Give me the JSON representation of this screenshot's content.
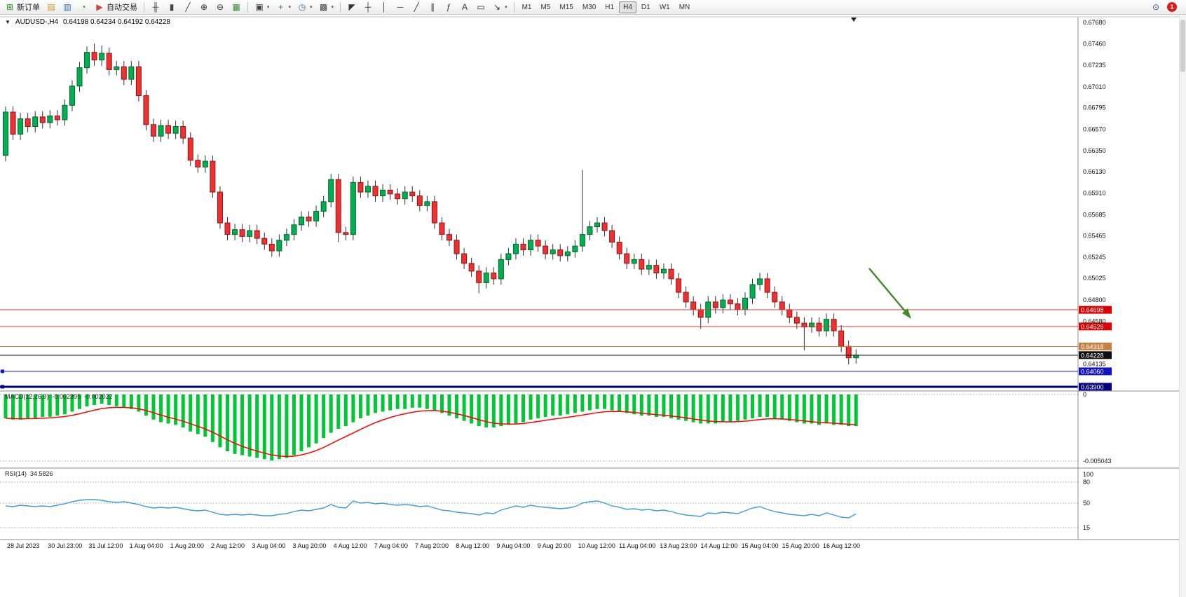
{
  "toolbar": {
    "active_timeframe": "H4",
    "items": [
      {
        "type": "button",
        "name": "new-order",
        "glyph": "⊞",
        "color": "#1f8f1f",
        "label": "新订单"
      },
      {
        "type": "button",
        "name": "market-watch",
        "glyph": "▤",
        "color": "#c89a28"
      },
      {
        "type": "button",
        "name": "data-window",
        "glyph": "▥",
        "color": "#3a6ea5"
      },
      {
        "type": "button",
        "name": "navigator",
        "glyph": "◔",
        "color": "#2e8b2e"
      },
      {
        "type": "button",
        "name": "auto-trading",
        "glyph": "▶",
        "color": "#cc4433",
        "label": "自动交易"
      },
      {
        "type": "sep"
      },
      {
        "type": "button",
        "name": "bar-chart",
        "glyph": "╫",
        "color": "#444444"
      },
      {
        "type": "button",
        "name": "candlestick-chart",
        "glyph": "▮",
        "color": "#444444"
      },
      {
        "type": "button",
        "name": "line-chart",
        "glyph": "╱",
        "color": "#444444"
      },
      {
        "type": "button",
        "name": "zoom-in",
        "glyph": "⊕",
        "color": "#333333"
      },
      {
        "type": "button",
        "name": "zoom-out",
        "glyph": "⊖",
        "color": "#333333"
      },
      {
        "type": "button",
        "name": "tile-windows",
        "glyph": "▦",
        "color": "#2e8b2e"
      },
      {
        "type": "sep"
      },
      {
        "type": "button",
        "name": "new-chart",
        "glyph": "▣",
        "color": "#444444",
        "dropdown": true
      },
      {
        "type": "button",
        "name": "indicators-list",
        "glyph": "+",
        "color": "#1f8f1f",
        "dropdown": true
      },
      {
        "type": "button",
        "name": "periods",
        "glyph": "◷",
        "color": "#3a6ea5",
        "dropdown": true
      },
      {
        "type": "button",
        "name": "templates",
        "glyph": "▩",
        "color": "#444444",
        "dropdown": true
      },
      {
        "type": "sep"
      },
      {
        "type": "button",
        "name": "cursor",
        "glyph": "◤",
        "color": "#333333"
      },
      {
        "type": "button",
        "name": "crosshair",
        "glyph": "┼",
        "color": "#333333"
      },
      {
        "type": "button",
        "name": "vertical-line",
        "glyph": "│",
        "color": "#333333"
      },
      {
        "type": "button",
        "name": "horizontal-line",
        "glyph": "─",
        "color": "#333333"
      },
      {
        "type": "button",
        "name": "trendline",
        "glyph": "╱",
        "color": "#333333"
      },
      {
        "type": "button",
        "name": "equidistant-channel",
        "glyph": "∥",
        "color": "#333333"
      },
      {
        "type": "button",
        "name": "fibonacci",
        "glyph": "ƒ",
        "color": "#333333"
      },
      {
        "type": "button",
        "name": "text",
        "glyph": "A",
        "color": "#333333"
      },
      {
        "type": "button",
        "name": "text-label",
        "glyph": "▭",
        "color": "#333333"
      },
      {
        "type": "button",
        "name": "arrows",
        "glyph": "↘",
        "color": "#333333",
        "dropdown": true
      },
      {
        "type": "sep"
      },
      {
        "type": "tf",
        "label": "M1"
      },
      {
        "type": "tf",
        "label": "M5"
      },
      {
        "type": "tf",
        "label": "M15"
      },
      {
        "type": "tf",
        "label": "M30"
      },
      {
        "type": "tf",
        "label": "H1"
      },
      {
        "type": "tf",
        "label": "H4"
      },
      {
        "type": "tf",
        "label": "D1"
      },
      {
        "type": "tf",
        "label": "W1"
      },
      {
        "type": "tf",
        "label": "MN"
      },
      {
        "type": "spacer"
      },
      {
        "type": "button",
        "name": "search",
        "glyph": "⊙",
        "color": "#2255aa"
      },
      {
        "type": "badge",
        "name": "notifications",
        "label": "1"
      }
    ]
  },
  "chart_header": {
    "collapse_icon": "▼",
    "symbol_period": "AUDUSD-,H4",
    "ohlc": "0.64198 0.64234 0.64192 0.64228"
  },
  "price_axis_labels": [
    "0.67680",
    "0.67460",
    "0.67235",
    "0.67010",
    "0.66795",
    "0.66570",
    "0.66350",
    "0.66130",
    "0.65910",
    "0.65685",
    "0.65465",
    "0.65245",
    "0.65025",
    "0.64800",
    "0.64580",
    "0.64135"
  ],
  "hlines": [
    {
      "price": 0.64698,
      "label": "0.64698",
      "color": "#f03030",
      "badge": "#e00000",
      "width": 1
    },
    {
      "price": 0.64526,
      "label": "0.64526",
      "color": "#f03030",
      "badge": "#e00000",
      "width": 1
    },
    {
      "price": 0.64318,
      "label": "0.64318",
      "color": "#c8813f",
      "badge": "#c8813f",
      "width": 1
    },
    {
      "price": 0.64228,
      "label": "0.64228",
      "color": "#101010",
      "badge": "#101010",
      "width": 1
    },
    {
      "price": 0.6406,
      "label": "0.64060",
      "color": "#1515e0",
      "badge": "#1111cc",
      "width": 1,
      "handles": true
    },
    {
      "price": 0.639,
      "label": "0.63900",
      "color": "#000080",
      "badge": "#000080",
      "width": 3,
      "handles": true
    }
  ],
  "chart_data": {
    "type": "candlestick",
    "symbol": "AUDUSD",
    "period": "H4",
    "ylim": [
      0.639,
      0.6768
    ],
    "open_first": 0.663,
    "default_wick": 0.0006,
    "closes": [
      0.6675,
      0.6652,
      0.6668,
      0.666,
      0.667,
      0.6664,
      0.6671,
      0.6667,
      0.6682,
      0.6702,
      0.6721,
      0.6737,
      0.6729,
      0.6736,
      0.6719,
      0.6722,
      0.6709,
      0.6722,
      0.6692,
      0.6662,
      0.665,
      0.6661,
      0.6653,
      0.666,
      0.6648,
      0.6625,
      0.6618,
      0.6624,
      0.6592,
      0.656,
      0.6548,
      0.6553,
      0.6546,
      0.6552,
      0.6544,
      0.6538,
      0.6531,
      0.6542,
      0.6548,
      0.6558,
      0.6566,
      0.6562,
      0.6572,
      0.6582,
      0.6605,
      0.655,
      0.6548,
      0.6602,
      0.6592,
      0.6598,
      0.6588,
      0.6594,
      0.659,
      0.6585,
      0.6592,
      0.6588,
      0.6578,
      0.6582,
      0.656,
      0.6548,
      0.6542,
      0.6528,
      0.6518,
      0.651,
      0.6498,
      0.6508,
      0.6502,
      0.6522,
      0.6528,
      0.6538,
      0.6532,
      0.6542,
      0.6536,
      0.6528,
      0.6532,
      0.6526,
      0.653,
      0.6536,
      0.6548,
      0.6556,
      0.656,
      0.6552,
      0.654,
      0.6528,
      0.6518,
      0.6522,
      0.6512,
      0.6516,
      0.6508,
      0.6512,
      0.6502,
      0.6488,
      0.6478,
      0.647,
      0.6462,
      0.6478,
      0.6472,
      0.648,
      0.6476,
      0.647,
      0.6482,
      0.6496,
      0.6502,
      0.6488,
      0.6478,
      0.647,
      0.6462,
      0.6456,
      0.6452,
      0.6456,
      0.6448,
      0.646,
      0.6448,
      0.6432,
      0.642,
      0.64228
    ],
    "wick_overrides": {
      "12": {
        "h": 0.6746
      },
      "13": {
        "h": 0.6744
      },
      "45": {
        "l": 0.654
      },
      "64": {
        "l": 0.6487
      },
      "78": {
        "h": 0.6615
      },
      "94": {
        "l": 0.645
      },
      "108": {
        "l": 0.6428
      },
      "114": {
        "l": 0.6413
      }
    },
    "x_axis_labels": [
      "28 Jul 2023",
      "30 Jul 23:00",
      "31 Jul 12:00",
      "1 Aug 04:00",
      "1 Aug 20:00",
      "2 Aug 12:00",
      "3 Aug 04:00",
      "3 Aug 20:00",
      "4 Aug 12:00",
      "7 Aug 04:00",
      "7 Aug 20:00",
      "8 Aug 12:00",
      "9 Aug 04:00",
      "9 Aug 20:00",
      "10 Aug 12:00",
      "11 Aug 04:00",
      "13 Aug 23:00",
      "14 Aug 12:00",
      "15 Aug 04:00",
      "15 Aug 20:00",
      "16 Aug 12:00"
    ]
  },
  "indicators": {
    "macd": {
      "label": "MACD(12,26,9)",
      "value_main": "-0.002395",
      "value_signal": "-0.002022",
      "axis_max": "0",
      "axis_min": "-0.005043",
      "values": [
        -0.0018,
        -0.0019,
        -0.0019,
        -0.0018,
        -0.0018,
        -0.0017,
        -0.0017,
        -0.0016,
        -0.0015,
        -0.0013,
        -0.0011,
        -0.0009,
        -0.0008,
        -0.0007,
        -0.0008,
        -0.0009,
        -0.001,
        -0.0011,
        -0.0013,
        -0.0016,
        -0.0019,
        -0.0021,
        -0.0022,
        -0.0023,
        -0.0025,
        -0.0028,
        -0.003,
        -0.0032,
        -0.0036,
        -0.004,
        -0.0043,
        -0.0045,
        -0.0046,
        -0.0047,
        -0.0048,
        -0.0049,
        -0.005,
        -0.0049,
        -0.0048,
        -0.0046,
        -0.0043,
        -0.004,
        -0.0037,
        -0.0033,
        -0.0029,
        -0.0026,
        -0.0024,
        -0.0021,
        -0.0018,
        -0.0016,
        -0.0014,
        -0.0013,
        -0.0012,
        -0.0011,
        -0.0011,
        -0.001,
        -0.001,
        -0.0011,
        -0.0012,
        -0.0014,
        -0.0016,
        -0.0018,
        -0.002,
        -0.0022,
        -0.0024,
        -0.0025,
        -0.0025,
        -0.0024,
        -0.0023,
        -0.0022,
        -0.0021,
        -0.0019,
        -0.0018,
        -0.0017,
        -0.0016,
        -0.0016,
        -0.0015,
        -0.0014,
        -0.0013,
        -0.0012,
        -0.0011,
        -0.0011,
        -0.0012,
        -0.0013,
        -0.0014,
        -0.0015,
        -0.0016,
        -0.0016,
        -0.0017,
        -0.0017,
        -0.0018,
        -0.0019,
        -0.002,
        -0.0021,
        -0.0022,
        -0.0022,
        -0.0022,
        -0.0021,
        -0.0021,
        -0.002,
        -0.0019,
        -0.0018,
        -0.0017,
        -0.0017,
        -0.0018,
        -0.0019,
        -0.002,
        -0.0021,
        -0.0022,
        -0.0022,
        -0.0023,
        -0.0022,
        -0.0023,
        -0.0023,
        -0.0024,
        -0.0024
      ]
    },
    "rsi": {
      "label": "RSI(14)",
      "value": "34.5826",
      "axis_labels": [
        "100",
        "80",
        "50",
        "15"
      ],
      "levels": [
        80,
        50,
        15
      ],
      "values": [
        46,
        45,
        47,
        46,
        45,
        46,
        45,
        47,
        49,
        52,
        54,
        55,
        55,
        54,
        52,
        51,
        52,
        50,
        48,
        45,
        43,
        44,
        43,
        44,
        42,
        40,
        39,
        40,
        37,
        34,
        33,
        34,
        33,
        34,
        33,
        32,
        32,
        34,
        35,
        38,
        40,
        39,
        41,
        43,
        48,
        44,
        43,
        53,
        50,
        51,
        49,
        50,
        48,
        47,
        48,
        47,
        45,
        46,
        43,
        40,
        39,
        37,
        36,
        35,
        33,
        36,
        35,
        40,
        43,
        46,
        44,
        47,
        45,
        44,
        43,
        42,
        43,
        45,
        50,
        52,
        53,
        50,
        46,
        44,
        41,
        42,
        40,
        41,
        39,
        40,
        38,
        35,
        33,
        32,
        31,
        36,
        35,
        37,
        36,
        35,
        39,
        43,
        45,
        41,
        38,
        36,
        34,
        33,
        32,
        34,
        32,
        36,
        33,
        30,
        29,
        34.6
      ]
    }
  },
  "annotations": {
    "arrow": {
      "from": [
        1240,
        362
      ],
      "to": [
        1300,
        434
      ],
      "color": "#3f8f29"
    }
  },
  "colors": {
    "bull": "#00b050",
    "bear": "#ef3030",
    "macd_hist": "#00c832",
    "macd_signal": "#ff0000",
    "rsi_line": "#3e9cd8"
  }
}
